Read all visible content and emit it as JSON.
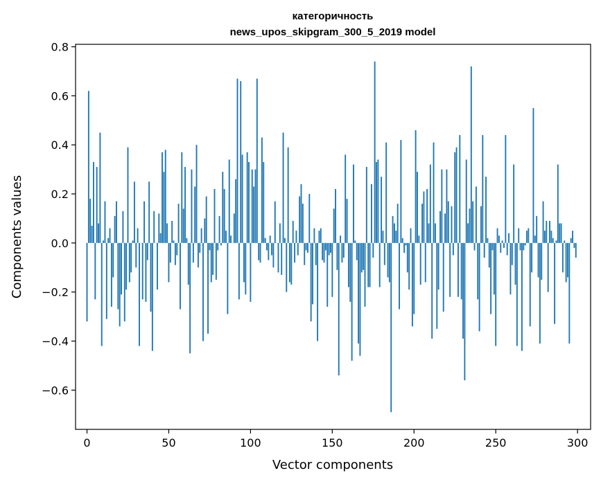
{
  "chart_data": {
    "type": "bar",
    "title_lines": [
      "категоричность",
      "news_upos_skipgram_300_5_2019 model"
    ],
    "xlabel": "Vector components",
    "ylabel": "Components values",
    "xlim": [
      -7,
      308
    ],
    "ylim": [
      -0.76,
      0.81
    ],
    "xticks": [
      0,
      50,
      100,
      150,
      200,
      250,
      300
    ],
    "yticks": [
      -0.6,
      -0.4,
      -0.2,
      0.0,
      0.2,
      0.4,
      0.6,
      0.8
    ],
    "ytick_labels": [
      "−0.6",
      "−0.4",
      "−0.2",
      "0.0",
      "0.2",
      "0.4",
      "0.6",
      "0.8"
    ],
    "grid": false,
    "bar_color": "#1f77b4",
    "values": [
      -0.32,
      0.62,
      0.18,
      0.07,
      0.33,
      -0.23,
      0.31,
      0.08,
      0.45,
      -0.42,
      0.01,
      0.17,
      -0.31,
      0.02,
      0.06,
      -0.26,
      -0.14,
      0.11,
      0.17,
      -0.27,
      -0.34,
      -0.21,
      0.13,
      -0.32,
      -0.19,
      0.39,
      -0.16,
      -0.12,
      0.01,
      0.25,
      -0.1,
      0.06,
      -0.42,
      0.0,
      -0.23,
      0.17,
      -0.24,
      -0.07,
      0.25,
      -0.28,
      -0.44,
      0.13,
      0.0,
      -0.19,
      0.12,
      0.04,
      0.37,
      0.29,
      0.38,
      0.08,
      -0.16,
      -0.08,
      0.09,
      0.01,
      -0.09,
      -0.05,
      0.16,
      -0.27,
      0.37,
      0.14,
      0.31,
      0.02,
      -0.17,
      -0.45,
      0.3,
      -0.08,
      0.23,
      0.4,
      -0.1,
      -0.04,
      0.06,
      -0.4,
      0.1,
      0.19,
      -0.37,
      -0.03,
      -0.16,
      -0.13,
      0.22,
      -0.15,
      -0.03,
      0.11,
      -0.01,
      0.29,
      0.22,
      0.05,
      -0.29,
      0.34,
      0.03,
      0.0,
      0.12,
      0.26,
      0.67,
      -0.23,
      0.66,
      0.36,
      -0.16,
      -0.21,
      0.37,
      0.33,
      -0.24,
      0.3,
      0.23,
      0.3,
      0.67,
      -0.07,
      -0.08,
      0.43,
      0.33,
      0.02,
      -0.03,
      -0.07,
      0.03,
      -0.05,
      -0.1,
      0.17,
      0.0,
      -0.12,
      0.08,
      -0.13,
      0.45,
      0.02,
      -0.2,
      0.39,
      -0.16,
      -0.17,
      0.09,
      -0.08,
      0.05,
      -0.05,
      0.19,
      0.24,
      0.16,
      -0.09,
      -0.03,
      -0.04,
      0.2,
      -0.32,
      -0.25,
      0.06,
      -0.09,
      -0.4,
      0.05,
      0.06,
      -0.07,
      -0.08,
      -0.03,
      -0.26,
      -0.05,
      -0.04,
      -0.22,
      0.14,
      0.22,
      -0.11,
      -0.54,
      0.03,
      -0.08,
      -0.06,
      0.36,
      0.18,
      -0.18,
      -0.24,
      -0.48,
      0.32,
      0.01,
      -0.07,
      -0.41,
      -0.46,
      -0.12,
      -0.11,
      -0.26,
      0.31,
      -0.18,
      -0.18,
      0.24,
      -0.06,
      0.74,
      0.33,
      0.34,
      -0.18,
      0.27,
      0.05,
      -0.09,
      0.41,
      -0.14,
      -0.16,
      -0.69,
      0.11,
      0.08,
      0.05,
      0.16,
      -0.27,
      0.42,
      0.02,
      -0.04,
      -0.01,
      -0.12,
      -0.19,
      0.06,
      -0.34,
      -0.29,
      0.46,
      0.29,
      0.03,
      -0.17,
      0.16,
      0.21,
      -0.16,
      0.22,
      0.08,
      0.32,
      -0.39,
      0.41,
      0.08,
      -0.35,
      -0.19,
      0.13,
      0.3,
      -0.28,
      0.12,
      0.3,
      0.17,
      -0.22,
      0.15,
      -0.05,
      0.37,
      0.39,
      -0.22,
      0.44,
      -0.23,
      -0.39,
      -0.56,
      0.34,
      0.08,
      0.14,
      0.72,
      0.17,
      -0.03,
      0.23,
      -0.23,
      -0.36,
      0.15,
      0.44,
      -0.06,
      0.27,
      0.02,
      -0.1,
      -0.29,
      -0.03,
      -0.21,
      -0.42,
      0.06,
      0.03,
      -0.04,
      0.01,
      -0.02,
      0.44,
      -0.05,
      0.04,
      -0.21,
      -0.09,
      0.32,
      -0.17,
      -0.42,
      0.06,
      -0.03,
      -0.44,
      -0.03,
      -0.01,
      0.05,
      0.06,
      -0.34,
      -0.12,
      0.55,
      0.03,
      0.11,
      -0.14,
      -0.41,
      -0.15,
      0.17,
      0.05,
      0.09,
      -0.2,
      0.09,
      0.05,
      0.02,
      -0.33,
      0.01,
      0.32,
      0.08,
      0.08,
      -0.12,
      0.01,
      -0.16,
      -0.14,
      -0.41,
      0.02,
      0.05,
      -0.02,
      -0.06
    ]
  }
}
